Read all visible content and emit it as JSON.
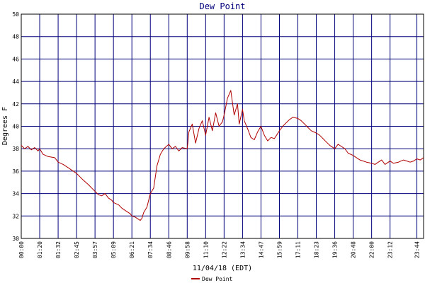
{
  "chart_data": {
    "type": "line",
    "title": "Dew Point",
    "xlabel": "11/04/18 (EDT)",
    "ylabel": "Degrees F",
    "ylim": [
      30,
      50
    ],
    "yticks": [
      30,
      32,
      34,
      36,
      38,
      40,
      42,
      44,
      46,
      48,
      50
    ],
    "xlim": [
      0,
      24
    ],
    "xticks": [
      {
        "label": "00:00",
        "hour": 0.0
      },
      {
        "label": "01:20",
        "hour": 1.1
      },
      {
        "label": "01:32",
        "hour": 2.2
      },
      {
        "label": "02:45",
        "hour": 3.3
      },
      {
        "label": "03:57",
        "hour": 4.4
      },
      {
        "label": "05:09",
        "hour": 5.5
      },
      {
        "label": "06:21",
        "hour": 6.6
      },
      {
        "label": "07:34",
        "hour": 7.7
      },
      {
        "label": "08:46",
        "hour": 8.8
      },
      {
        "label": "09:58",
        "hour": 9.9
      },
      {
        "label": "11:10",
        "hour": 11.0
      },
      {
        "label": "12:22",
        "hour": 12.1
      },
      {
        "label": "13:34",
        "hour": 13.2
      },
      {
        "label": "14:47",
        "hour": 14.3
      },
      {
        "label": "15:59",
        "hour": 15.4
      },
      {
        "label": "17:11",
        "hour": 16.5
      },
      {
        "label": "18:23",
        "hour": 17.6
      },
      {
        "label": "19:36",
        "hour": 18.7
      },
      {
        "label": "20:48",
        "hour": 19.8
      },
      {
        "label": "22:00",
        "hour": 20.9
      },
      {
        "label": "23:12",
        "hour": 22.0
      },
      {
        "label": "23:44",
        "hour": 23.6
      }
    ],
    "grid": true,
    "legend_position": "bottom-center",
    "series": [
      {
        "name": "Dew Point",
        "color": "#b00000",
        "x": [
          0.0,
          0.2,
          0.4,
          0.6,
          0.8,
          1.0,
          1.1,
          1.3,
          1.6,
          2.0,
          2.2,
          2.5,
          2.8,
          3.0,
          3.3,
          3.5,
          3.7,
          4.0,
          4.2,
          4.4,
          4.6,
          4.8,
          5.0,
          5.2,
          5.4,
          5.5,
          5.8,
          6.0,
          6.2,
          6.5,
          6.6,
          6.8,
          7.0,
          7.1,
          7.2,
          7.3,
          7.5,
          7.7,
          7.9,
          8.0,
          8.1,
          8.3,
          8.5,
          8.8,
          9.0,
          9.2,
          9.4,
          9.6,
          9.9,
          10.0,
          10.2,
          10.4,
          10.6,
          10.8,
          11.0,
          11.2,
          11.4,
          11.6,
          11.8,
          12.0,
          12.1,
          12.3,
          12.5,
          12.7,
          12.9,
          13.0,
          13.2,
          13.3,
          13.5,
          13.7,
          13.9,
          14.1,
          14.3,
          14.5,
          14.7,
          14.9,
          15.1,
          15.4,
          15.6,
          15.8,
          16.0,
          16.2,
          16.5,
          16.7,
          16.9,
          17.1,
          17.3,
          17.6,
          17.8,
          18.0,
          18.2,
          18.4,
          18.7,
          18.9,
          19.1,
          19.3,
          19.5,
          19.8,
          20.0,
          20.2,
          20.4,
          20.6,
          20.9,
          21.1,
          21.3,
          21.5,
          21.7,
          22.0,
          22.2,
          22.5,
          22.8,
          23.0,
          23.2,
          23.4,
          23.6,
          23.8,
          24.0
        ],
        "y": [
          38.3,
          38.0,
          38.2,
          37.9,
          38.1,
          37.8,
          38.0,
          37.5,
          37.3,
          37.2,
          36.8,
          36.6,
          36.3,
          36.1,
          35.8,
          35.5,
          35.2,
          34.8,
          34.5,
          34.2,
          33.9,
          33.8,
          34.0,
          33.6,
          33.4,
          33.2,
          33.0,
          32.7,
          32.5,
          32.2,
          32.0,
          31.9,
          31.7,
          31.6,
          31.8,
          32.3,
          32.8,
          34.0,
          34.5,
          35.5,
          36.5,
          37.5,
          38.0,
          38.4,
          38.0,
          38.2,
          37.8,
          38.1,
          38.0,
          39.5,
          40.2,
          38.5,
          39.8,
          40.5,
          39.2,
          40.8,
          39.6,
          41.2,
          40.0,
          40.4,
          41.0,
          42.5,
          43.2,
          41.0,
          42.0,
          40.2,
          41.5,
          40.5,
          39.8,
          39.0,
          38.8,
          39.5,
          40.0,
          39.2,
          38.7,
          39.0,
          38.9,
          39.6,
          40.0,
          40.3,
          40.6,
          40.8,
          40.7,
          40.5,
          40.2,
          39.9,
          39.6,
          39.4,
          39.2,
          38.9,
          38.6,
          38.3,
          38.0,
          38.4,
          38.2,
          38.0,
          37.6,
          37.4,
          37.2,
          37.0,
          36.9,
          36.8,
          36.7,
          36.6,
          36.8,
          37.0,
          36.6,
          36.9,
          36.7,
          36.8,
          37.0,
          36.9,
          36.8,
          36.9,
          37.1,
          37.0,
          37.2
        ]
      }
    ]
  }
}
